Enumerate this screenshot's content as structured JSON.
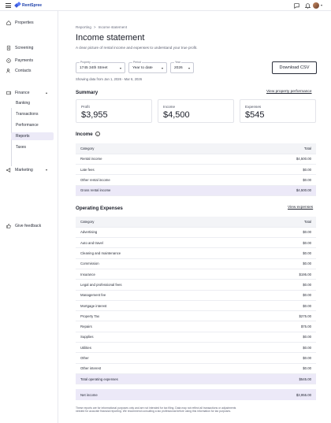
{
  "app": {
    "brand": "RentSpree"
  },
  "sidebar": {
    "items": [
      {
        "label": "Properties",
        "icon": "home-icon"
      },
      {
        "label": "Screening",
        "icon": "clipboard-icon"
      },
      {
        "label": "Payments",
        "icon": "dollar-circle-icon"
      },
      {
        "label": "Contacts",
        "icon": "people-icon"
      },
      {
        "label": "Finance",
        "icon": "wallet-icon"
      },
      {
        "label": "Marketing",
        "icon": "megaphone-icon"
      }
    ],
    "finance_sub": [
      "Banking",
      "Transactions",
      "Performance",
      "Reports",
      "Taxes"
    ],
    "feedback": "Give feedback"
  },
  "breadcrumb": {
    "parent": "Reporting",
    "separator": ">",
    "current": "Income statement"
  },
  "page": {
    "title": "Income statement",
    "subtitle": "A clear picture of rental income and expenses to understand your true profit."
  },
  "filters": {
    "property": {
      "caption": "Property",
      "value": "1745 34th Street"
    },
    "period": {
      "caption": "Period",
      "value": "Year to date"
    },
    "year": {
      "caption": "Year",
      "value": "2026"
    },
    "download": "Download CSV",
    "showing": "Showing data from Jan 1, 2026 - Mar 6, 2026"
  },
  "summary": {
    "heading": "Summary",
    "link": "View property performance",
    "cards": [
      {
        "label": "Profit",
        "value": "$3,955"
      },
      {
        "label": "Income",
        "value": "$4,500"
      },
      {
        "label": "Expenses",
        "value": "$545"
      }
    ]
  },
  "income": {
    "heading": "Income",
    "col_category": "Category",
    "col_total": "Total",
    "rows": [
      {
        "category": "Rental income",
        "total": "$4,500.00"
      },
      {
        "category": "Late fees",
        "total": "$0.00"
      },
      {
        "category": "Other rental income",
        "total": "$0.00"
      }
    ],
    "total_row": {
      "category": "Gross rental income",
      "total": "$4,500.00"
    }
  },
  "expenses": {
    "heading": "Operating Expenses",
    "link": "View expenses",
    "col_category": "Category",
    "col_total": "Total",
    "rows": [
      {
        "category": "Advertising",
        "total": "$0.00"
      },
      {
        "category": "Auto and travel",
        "total": "$0.00"
      },
      {
        "category": "Cleaning and maintenance",
        "total": "$0.00"
      },
      {
        "category": "Commission",
        "total": "$0.00"
      },
      {
        "category": "Insurance",
        "total": "$195.00"
      },
      {
        "category": "Legal and professional fees",
        "total": "$0.00"
      },
      {
        "category": "Management fee",
        "total": "$0.00"
      },
      {
        "category": "Mortgage interest",
        "total": "$0.00"
      },
      {
        "category": "Property Tax",
        "total": "$275.00"
      },
      {
        "category": "Repairs",
        "total": "$75.00"
      },
      {
        "category": "Supplies",
        "total": "$0.00"
      },
      {
        "category": "Utilities",
        "total": "$0.00"
      },
      {
        "category": "Other",
        "total": "$0.00"
      },
      {
        "category": "Other interest",
        "total": "$0.00"
      }
    ],
    "total_row": {
      "category": "Total operating expenses",
      "total": "$545.00"
    }
  },
  "net": {
    "label": "Net income",
    "value": "$3,955.00"
  },
  "disclaimer": "These reports are for informational purposes only and are not intended for tax filing. Data may not reflect all transactions or adjustments needed for accurate financial reporting. We recommend consulting a tax professional before using this information for tax purposes."
}
